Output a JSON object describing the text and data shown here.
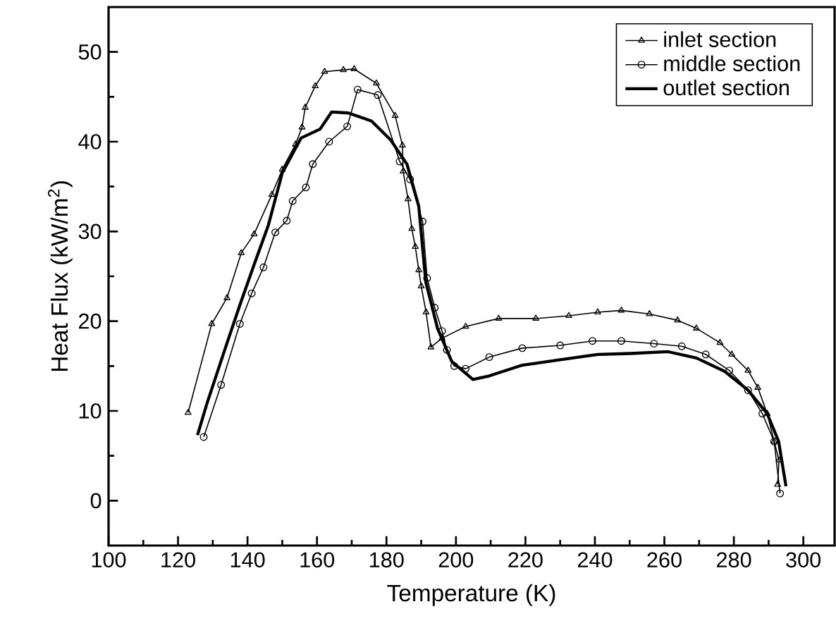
{
  "chart_data": {
    "type": "line",
    "xlabel": "Temperature (K)",
    "ylabel": "Heat Flux (kW/m$^{2}$)",
    "xlim": [
      100,
      309
    ],
    "ylim": [
      -5,
      55
    ],
    "xticks": [
      100,
      120,
      140,
      160,
      180,
      200,
      220,
      240,
      260,
      280,
      300
    ],
    "yticks": [
      0,
      10,
      20,
      30,
      40,
      50
    ],
    "grid": false,
    "legend": "top right",
    "line_style": "solid",
    "series": [
      {
        "name": "inlet section",
        "color": "#000000",
        "marker": "triangle",
        "x": [
          122.9,
          129.7,
          134.1,
          138.2,
          141.9,
          147,
          150,
          153.8,
          155.7,
          156.6,
          159.5,
          162.2,
          167.6,
          170.7,
          177.1,
          182.5,
          184.6,
          184.8,
          186.2,
          187.3,
          188.3,
          189.3,
          190,
          191.4,
          192.8,
          196,
          202.8,
          212.3,
          223,
          232.5,
          240.8,
          247.6,
          255.7,
          263.8,
          269.2,
          276,
          279.4,
          284.1,
          286.9,
          289.6,
          291.6,
          293,
          292.6
        ],
        "values": [
          9.8,
          19.7,
          22.6,
          27.6,
          29.7,
          34.1,
          36.9,
          39.7,
          41.6,
          43.8,
          46.2,
          47.8,
          48.0,
          48.1,
          46.5,
          42.9,
          39.6,
          36.7,
          33.6,
          30.3,
          28.3,
          25.7,
          23.9,
          21,
          17.1,
          18.1,
          19.4,
          20.3,
          20.3,
          20.6,
          21,
          21.2,
          20.8,
          20.1,
          19.2,
          17.6,
          16.3,
          14.5,
          12.6,
          9.7,
          6.6,
          4.5,
          1.8
        ]
      },
      {
        "name": "middle section",
        "color": "#000000",
        "marker": "circle",
        "x": [
          127.4,
          132.4,
          137.8,
          141.2,
          144.6,
          148,
          151.3,
          153,
          156.8,
          158.8,
          163.5,
          168.7,
          171.7,
          177.5,
          183.8,
          186.8,
          190.4,
          191.7,
          193.9,
          196,
          197.4,
          199.5,
          202.8,
          209.6,
          219.1,
          230,
          239.3,
          247.6,
          257,
          265,
          271.9,
          278.7,
          284.1,
          288.2,
          291.6,
          293.3
        ],
        "values": [
          7.1,
          12.9,
          19.7,
          23.1,
          26,
          29.9,
          31.2,
          33.4,
          34.9,
          37.5,
          40,
          41.7,
          45.8,
          45.2,
          37.8,
          35.8,
          31.1,
          24.8,
          21.5,
          18.9,
          16.8,
          15,
          14.7,
          16,
          17,
          17.3,
          17.8,
          17.8,
          17.5,
          17.2,
          16.3,
          14.5,
          12.3,
          9.7,
          6.6,
          0.8
        ]
      },
      {
        "name": "outlet section",
        "color": "#000000",
        "marker": "none",
        "x": [
          125.6,
          128.3,
          133.7,
          137.8,
          141.9,
          146,
          150,
          155.4,
          160.9,
          164.2,
          169,
          175.7,
          181.2,
          185.9,
          189.3,
          191.3,
          194.7,
          198.8,
          204.9,
          209.6,
          219.1,
          230,
          240.8,
          250.3,
          261.1,
          269.2,
          277.4,
          284.1,
          289.6,
          292.9,
          295
        ],
        "values": [
          7.3,
          10.8,
          17.1,
          21.8,
          26.3,
          30.7,
          36.5,
          40.4,
          41.4,
          43.3,
          43.2,
          42.3,
          40.2,
          37.5,
          32.8,
          24.4,
          19.2,
          15.5,
          13.5,
          13.9,
          15.1,
          15.7,
          16.3,
          16.4,
          16.6,
          15.9,
          14.4,
          12.3,
          9.7,
          6.6,
          1.6
        ]
      }
    ]
  }
}
